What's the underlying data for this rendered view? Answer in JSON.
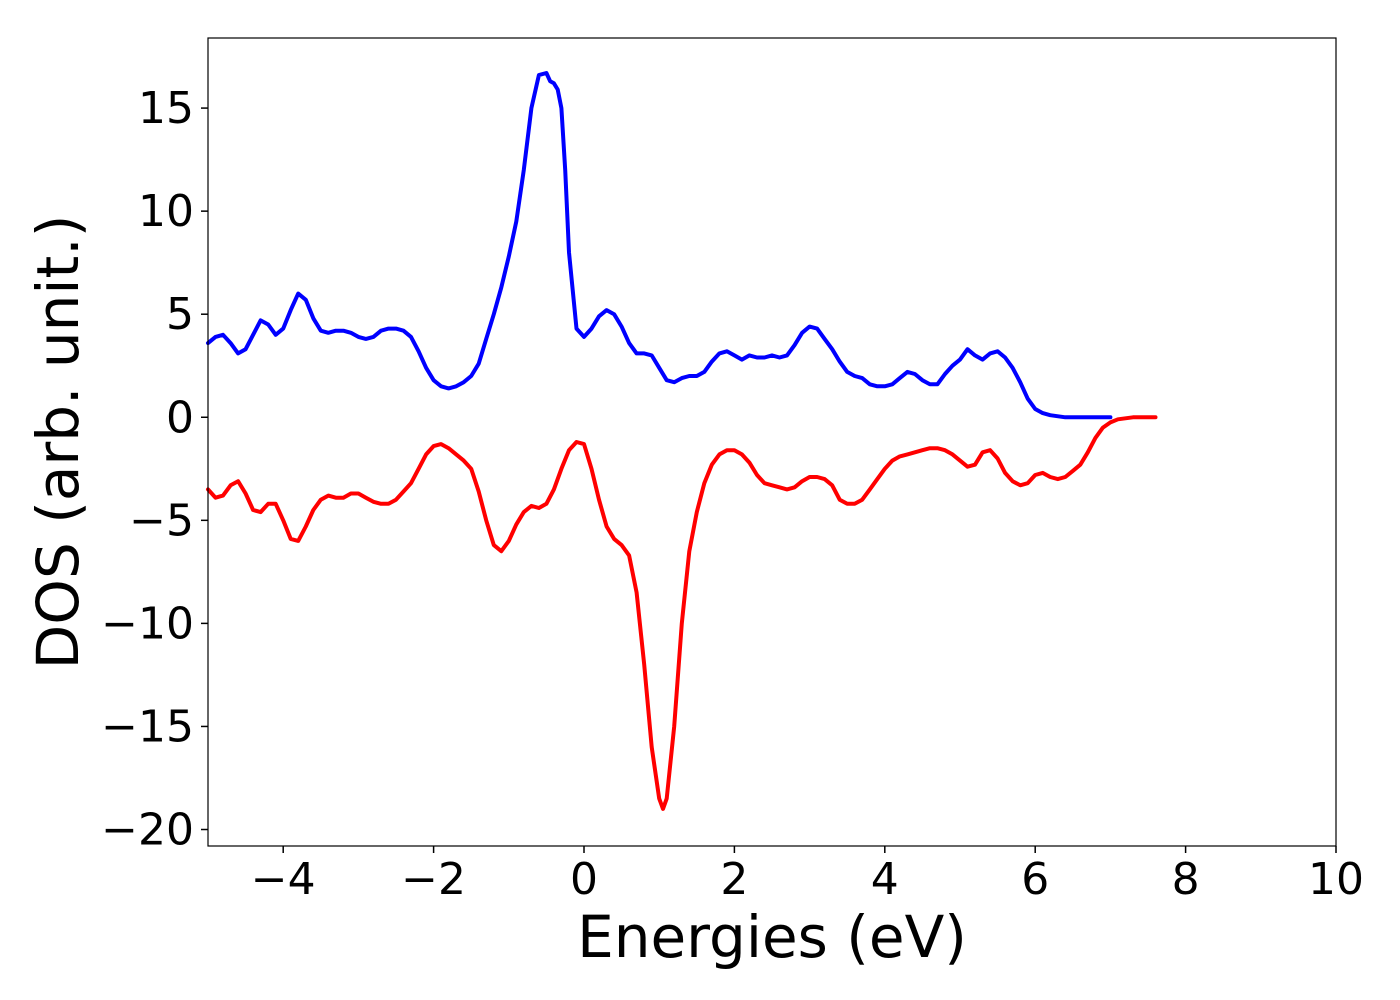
{
  "chart_data": {
    "type": "line",
    "title": "",
    "xlabel": "Energies (eV)",
    "ylabel": "DOS (arb. unit.)",
    "xlim": [
      -5,
      10
    ],
    "ylim": [
      -20.8,
      18.4
    ],
    "grid": false,
    "legend": "none",
    "xticks": [
      -4,
      -2,
      0,
      2,
      4,
      6,
      8,
      10
    ],
    "xtick_labels": [
      "−4",
      "−2",
      "0",
      "2",
      "4",
      "6",
      "8",
      "10"
    ],
    "yticks": [
      15,
      10,
      5,
      0,
      -5,
      -10,
      -15,
      -20
    ],
    "ytick_labels": [
      "15",
      "10",
      "5",
      "0",
      "−5",
      "−10",
      "−15",
      "−20"
    ],
    "series": [
      {
        "color": "#0000ff",
        "points": [
          [
            -5.0,
            3.6
          ],
          [
            -4.9,
            3.9
          ],
          [
            -4.8,
            4.0
          ],
          [
            -4.7,
            3.6
          ],
          [
            -4.6,
            3.1
          ],
          [
            -4.5,
            3.3
          ],
          [
            -4.4,
            4.0
          ],
          [
            -4.3,
            4.7
          ],
          [
            -4.2,
            4.5
          ],
          [
            -4.1,
            4.0
          ],
          [
            -4.0,
            4.3
          ],
          [
            -3.9,
            5.2
          ],
          [
            -3.8,
            6.0
          ],
          [
            -3.7,
            5.7
          ],
          [
            -3.6,
            4.8
          ],
          [
            -3.5,
            4.2
          ],
          [
            -3.4,
            4.1
          ],
          [
            -3.3,
            4.2
          ],
          [
            -3.2,
            4.2
          ],
          [
            -3.1,
            4.1
          ],
          [
            -3.0,
            3.9
          ],
          [
            -2.9,
            3.8
          ],
          [
            -2.8,
            3.9
          ],
          [
            -2.7,
            4.2
          ],
          [
            -2.6,
            4.3
          ],
          [
            -2.5,
            4.3
          ],
          [
            -2.4,
            4.2
          ],
          [
            -2.3,
            3.9
          ],
          [
            -2.2,
            3.2
          ],
          [
            -2.1,
            2.4
          ],
          [
            -2.0,
            1.8
          ],
          [
            -1.9,
            1.5
          ],
          [
            -1.8,
            1.4
          ],
          [
            -1.7,
            1.5
          ],
          [
            -1.6,
            1.7
          ],
          [
            -1.5,
            2.0
          ],
          [
            -1.4,
            2.6
          ],
          [
            -1.3,
            3.8
          ],
          [
            -1.2,
            5.0
          ],
          [
            -1.1,
            6.3
          ],
          [
            -1.0,
            7.8
          ],
          [
            -0.9,
            9.5
          ],
          [
            -0.8,
            12.0
          ],
          [
            -0.7,
            15.0
          ],
          [
            -0.6,
            16.6
          ],
          [
            -0.5,
            16.7
          ],
          [
            -0.45,
            16.3
          ],
          [
            -0.4,
            16.2
          ],
          [
            -0.35,
            15.9
          ],
          [
            -0.3,
            15.0
          ],
          [
            -0.25,
            12.0
          ],
          [
            -0.2,
            8.0
          ],
          [
            -0.1,
            4.3
          ],
          [
            0.0,
            3.9
          ],
          [
            0.1,
            4.3
          ],
          [
            0.2,
            4.9
          ],
          [
            0.3,
            5.2
          ],
          [
            0.4,
            5.0
          ],
          [
            0.5,
            4.4
          ],
          [
            0.6,
            3.6
          ],
          [
            0.7,
            3.1
          ],
          [
            0.8,
            3.1
          ],
          [
            0.9,
            3.0
          ],
          [
            1.0,
            2.4
          ],
          [
            1.1,
            1.8
          ],
          [
            1.2,
            1.7
          ],
          [
            1.3,
            1.9
          ],
          [
            1.4,
            2.0
          ],
          [
            1.5,
            2.0
          ],
          [
            1.6,
            2.2
          ],
          [
            1.7,
            2.7
          ],
          [
            1.8,
            3.1
          ],
          [
            1.9,
            3.2
          ],
          [
            2.0,
            3.0
          ],
          [
            2.1,
            2.8
          ],
          [
            2.2,
            3.0
          ],
          [
            2.3,
            2.9
          ],
          [
            2.4,
            2.9
          ],
          [
            2.5,
            3.0
          ],
          [
            2.6,
            2.9
          ],
          [
            2.7,
            3.0
          ],
          [
            2.8,
            3.5
          ],
          [
            2.9,
            4.1
          ],
          [
            3.0,
            4.4
          ],
          [
            3.1,
            4.3
          ],
          [
            3.2,
            3.8
          ],
          [
            3.3,
            3.3
          ],
          [
            3.4,
            2.7
          ],
          [
            3.5,
            2.2
          ],
          [
            3.6,
            2.0
          ],
          [
            3.7,
            1.9
          ],
          [
            3.8,
            1.6
          ],
          [
            3.9,
            1.5
          ],
          [
            4.0,
            1.5
          ],
          [
            4.1,
            1.6
          ],
          [
            4.2,
            1.9
          ],
          [
            4.3,
            2.2
          ],
          [
            4.4,
            2.1
          ],
          [
            4.5,
            1.8
          ],
          [
            4.6,
            1.6
          ],
          [
            4.7,
            1.6
          ],
          [
            4.8,
            2.1
          ],
          [
            4.9,
            2.5
          ],
          [
            5.0,
            2.8
          ],
          [
            5.1,
            3.3
          ],
          [
            5.2,
            3.0
          ],
          [
            5.3,
            2.8
          ],
          [
            5.4,
            3.1
          ],
          [
            5.5,
            3.2
          ],
          [
            5.6,
            2.9
          ],
          [
            5.7,
            2.4
          ],
          [
            5.8,
            1.7
          ],
          [
            5.9,
            0.9
          ],
          [
            6.0,
            0.4
          ],
          [
            6.1,
            0.2
          ],
          [
            6.2,
            0.1
          ],
          [
            6.4,
            0.0
          ],
          [
            7.0,
            0.0
          ]
        ]
      },
      {
        "color": "#ff0000",
        "points": [
          [
            -5.0,
            -3.5
          ],
          [
            -4.9,
            -3.9
          ],
          [
            -4.8,
            -3.8
          ],
          [
            -4.7,
            -3.3
          ],
          [
            -4.6,
            -3.1
          ],
          [
            -4.5,
            -3.7
          ],
          [
            -4.4,
            -4.5
          ],
          [
            -4.3,
            -4.6
          ],
          [
            -4.2,
            -4.2
          ],
          [
            -4.1,
            -4.2
          ],
          [
            -4.0,
            -5.0
          ],
          [
            -3.9,
            -5.9
          ],
          [
            -3.8,
            -6.0
          ],
          [
            -3.7,
            -5.3
          ],
          [
            -3.6,
            -4.5
          ],
          [
            -3.5,
            -4.0
          ],
          [
            -3.4,
            -3.8
          ],
          [
            -3.3,
            -3.9
          ],
          [
            -3.2,
            -3.9
          ],
          [
            -3.1,
            -3.7
          ],
          [
            -3.0,
            -3.7
          ],
          [
            -2.9,
            -3.9
          ],
          [
            -2.8,
            -4.1
          ],
          [
            -2.7,
            -4.2
          ],
          [
            -2.6,
            -4.2
          ],
          [
            -2.5,
            -4.0
          ],
          [
            -2.4,
            -3.6
          ],
          [
            -2.3,
            -3.2
          ],
          [
            -2.2,
            -2.5
          ],
          [
            -2.1,
            -1.8
          ],
          [
            -2.0,
            -1.4
          ],
          [
            -1.9,
            -1.3
          ],
          [
            -1.8,
            -1.5
          ],
          [
            -1.7,
            -1.8
          ],
          [
            -1.6,
            -2.1
          ],
          [
            -1.5,
            -2.5
          ],
          [
            -1.4,
            -3.6
          ],
          [
            -1.3,
            -5.0
          ],
          [
            -1.2,
            -6.2
          ],
          [
            -1.1,
            -6.5
          ],
          [
            -1.0,
            -6.0
          ],
          [
            -0.9,
            -5.2
          ],
          [
            -0.8,
            -4.6
          ],
          [
            -0.7,
            -4.3
          ],
          [
            -0.6,
            -4.4
          ],
          [
            -0.5,
            -4.2
          ],
          [
            -0.4,
            -3.5
          ],
          [
            -0.3,
            -2.5
          ],
          [
            -0.2,
            -1.6
          ],
          [
            -0.1,
            -1.2
          ],
          [
            0.0,
            -1.3
          ],
          [
            0.1,
            -2.5
          ],
          [
            0.2,
            -4.0
          ],
          [
            0.3,
            -5.3
          ],
          [
            0.4,
            -5.9
          ],
          [
            0.5,
            -6.2
          ],
          [
            0.6,
            -6.7
          ],
          [
            0.7,
            -8.5
          ],
          [
            0.8,
            -12.0
          ],
          [
            0.9,
            -16.0
          ],
          [
            1.0,
            -18.5
          ],
          [
            1.05,
            -19.0
          ],
          [
            1.1,
            -18.5
          ],
          [
            1.2,
            -15.0
          ],
          [
            1.3,
            -10.0
          ],
          [
            1.4,
            -6.5
          ],
          [
            1.5,
            -4.6
          ],
          [
            1.6,
            -3.2
          ],
          [
            1.7,
            -2.3
          ],
          [
            1.8,
            -1.8
          ],
          [
            1.9,
            -1.6
          ],
          [
            2.0,
            -1.6
          ],
          [
            2.1,
            -1.8
          ],
          [
            2.2,
            -2.2
          ],
          [
            2.3,
            -2.8
          ],
          [
            2.4,
            -3.2
          ],
          [
            2.5,
            -3.3
          ],
          [
            2.6,
            -3.4
          ],
          [
            2.7,
            -3.5
          ],
          [
            2.8,
            -3.4
          ],
          [
            2.9,
            -3.1
          ],
          [
            3.0,
            -2.9
          ],
          [
            3.1,
            -2.9
          ],
          [
            3.2,
            -3.0
          ],
          [
            3.3,
            -3.3
          ],
          [
            3.4,
            -4.0
          ],
          [
            3.5,
            -4.2
          ],
          [
            3.6,
            -4.2
          ],
          [
            3.7,
            -4.0
          ],
          [
            3.8,
            -3.5
          ],
          [
            3.9,
            -3.0
          ],
          [
            4.0,
            -2.5
          ],
          [
            4.1,
            -2.1
          ],
          [
            4.2,
            -1.9
          ],
          [
            4.3,
            -1.8
          ],
          [
            4.4,
            -1.7
          ],
          [
            4.5,
            -1.6
          ],
          [
            4.6,
            -1.5
          ],
          [
            4.7,
            -1.5
          ],
          [
            4.8,
            -1.6
          ],
          [
            4.9,
            -1.8
          ],
          [
            5.0,
            -2.1
          ],
          [
            5.1,
            -2.4
          ],
          [
            5.2,
            -2.3
          ],
          [
            5.3,
            -1.7
          ],
          [
            5.4,
            -1.6
          ],
          [
            5.5,
            -2.0
          ],
          [
            5.6,
            -2.7
          ],
          [
            5.7,
            -3.1
          ],
          [
            5.8,
            -3.3
          ],
          [
            5.9,
            -3.2
          ],
          [
            6.0,
            -2.8
          ],
          [
            6.1,
            -2.7
          ],
          [
            6.2,
            -2.9
          ],
          [
            6.3,
            -3.0
          ],
          [
            6.4,
            -2.9
          ],
          [
            6.5,
            -2.6
          ],
          [
            6.6,
            -2.3
          ],
          [
            6.7,
            -1.7
          ],
          [
            6.8,
            -1.0
          ],
          [
            6.9,
            -0.5
          ],
          [
            7.0,
            -0.25
          ],
          [
            7.1,
            -0.1
          ],
          [
            7.3,
            0.0
          ],
          [
            7.6,
            0.0
          ]
        ]
      }
    ]
  }
}
